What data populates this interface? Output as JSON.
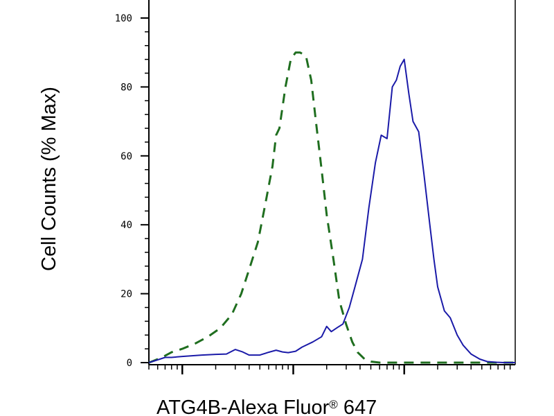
{
  "chart_data": {
    "type": "line",
    "title": "",
    "xlabel": "ATG4B-Alexa Fluor",
    "xlabel_mark": "®",
    "xlabel_suffix": " 647",
    "ylabel": "Cell Counts (% Max)",
    "x_scale": "log",
    "xlim": [
      0.5,
      1000
    ],
    "ylim": [
      0,
      100
    ],
    "y_ticks": [
      0,
      20,
      40,
      60,
      80,
      100
    ],
    "y_tick_labels": [
      "0",
      "20",
      "40",
      "60",
      "80",
      "100"
    ],
    "x_major_ticks": [
      1,
      10,
      100
    ],
    "grid": false,
    "legend": "none",
    "series": [
      {
        "style": "dashed",
        "color": "#1f6e1f",
        "x": [
          0.5,
          0.55,
          0.6,
          0.7,
          0.8,
          1.0,
          1.3,
          1.7,
          2.2,
          2.8,
          3.4,
          4.0,
          4.8,
          5.6,
          6.5,
          7.0,
          7.5,
          8.5,
          9.5,
          10.5,
          11.5,
          13,
          14.5,
          16,
          18,
          20,
          23,
          26,
          30,
          34,
          38,
          44,
          50,
          60,
          75,
          100,
          200,
          500,
          1000
        ],
        "y": [
          0,
          0.5,
          1,
          2,
          3,
          4,
          5.5,
          7.5,
          10,
          14,
          20,
          27,
          35,
          46,
          57,
          66,
          68,
          80,
          88,
          90,
          90,
          89,
          82,
          70,
          56,
          43,
          30,
          18,
          11,
          6,
          3,
          1,
          0.3,
          0,
          0,
          0,
          0,
          0,
          0
        ]
      },
      {
        "style": "solid",
        "color": "#1a1aa8",
        "x": [
          0.5,
          0.6,
          0.7,
          0.8,
          1.0,
          1.5,
          2.0,
          2.5,
          3.0,
          3.5,
          4.0,
          5.0,
          6.0,
          7.0,
          8.0,
          9.0,
          10.5,
          12,
          15,
          18,
          20,
          22,
          25,
          28,
          32,
          36,
          42,
          48,
          55,
          62,
          70,
          78,
          85,
          92,
          100,
          110,
          120,
          135,
          150,
          170,
          185,
          200,
          230,
          260,
          300,
          340,
          400,
          480,
          560,
          680,
          800,
          1000
        ],
        "y": [
          0,
          0.8,
          1.5,
          1.5,
          1.8,
          2.2,
          2.4,
          2.5,
          3.8,
          3.1,
          2.2,
          2.2,
          3.0,
          3.6,
          3.1,
          2.9,
          3.3,
          4.5,
          6.0,
          7.5,
          10.5,
          9.0,
          10.2,
          11.2,
          16,
          22,
          30,
          45,
          58,
          66,
          65,
          80,
          82,
          86,
          88,
          78,
          70,
          67,
          55,
          40,
          30,
          22,
          15,
          13,
          8,
          5,
          2.5,
          1.0,
          0.3,
          0.1,
          0,
          0
        ]
      }
    ]
  }
}
